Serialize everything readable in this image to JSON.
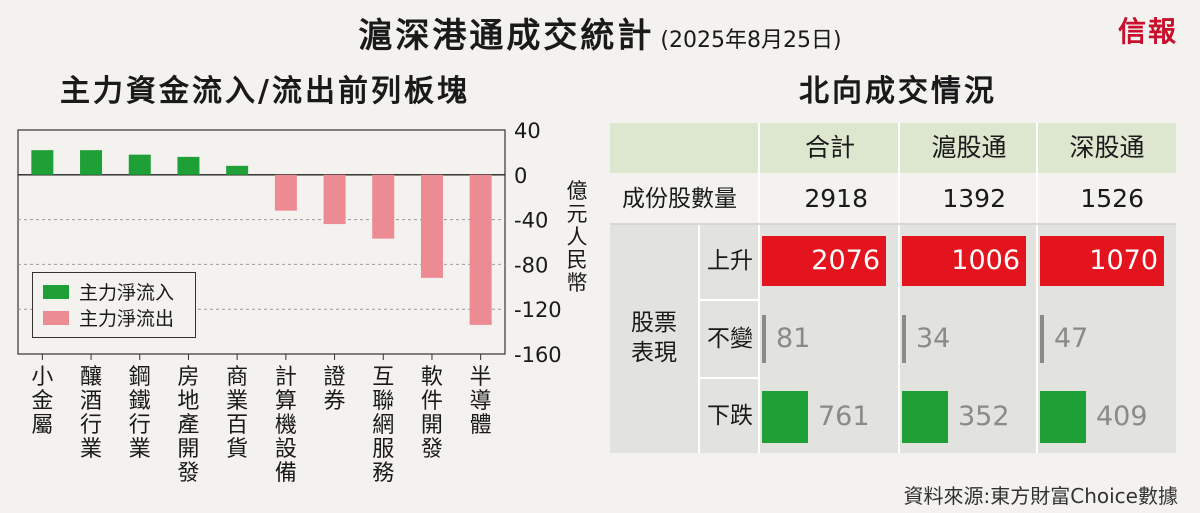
{
  "header": {
    "title": "滬深港通成交統計",
    "date": "(2025年8月25日)",
    "brand": "信報"
  },
  "left_panel": {
    "title": "主力資金流入/流出前列板塊",
    "unit_label": "億元人民幣",
    "legend": {
      "inflow": "主力淨流入",
      "outflow": "主力淨流出"
    }
  },
  "chart_data": {
    "type": "bar",
    "title": "主力資金流入/流出前列板塊",
    "ylabel": "億元人民幣",
    "ylim": [
      -160,
      40
    ],
    "yticks": [
      40,
      0,
      -40,
      -80,
      -120,
      -160
    ],
    "grid": true,
    "legend_position": "bottom-left",
    "categories": [
      "小金屬",
      "釀酒行業",
      "鋼鐵行業",
      "房地產開發",
      "商業百貨",
      "計算機設備",
      "證券",
      "互聯網服務",
      "軟件開發",
      "半導體"
    ],
    "series": [
      {
        "name": "主力淨流入",
        "values": [
          22,
          22,
          18,
          16,
          8,
          null,
          null,
          null,
          null,
          null
        ]
      },
      {
        "name": "主力淨流出",
        "values": [
          null,
          null,
          null,
          null,
          null,
          -32,
          -44,
          -57,
          -92,
          -134
        ]
      }
    ],
    "colors": {
      "inflow": "#1fa037",
      "outflow": "#ec8b94"
    }
  },
  "right_panel": {
    "title": "北向成交情況",
    "columns": [
      "合計",
      "滬股通",
      "深股通"
    ],
    "constituents_label": "成份股數量",
    "constituents": [
      "2918",
      "1392",
      "1526"
    ],
    "performance_label": "股票表現",
    "rows": [
      {
        "label": "上升",
        "values": [
          "2076",
          "1006",
          "1070"
        ],
        "fraction": 1.0,
        "color": "#e3141e"
      },
      {
        "label": "不變",
        "values": [
          "81",
          "34",
          "47"
        ],
        "color": "#8a8a8a"
      },
      {
        "label": "下跌",
        "values": [
          "761",
          "352",
          "409"
        ],
        "fraction": 0.37,
        "color": "#1fa037"
      }
    ]
  },
  "source": "資料來源:東方財富Choice數據"
}
